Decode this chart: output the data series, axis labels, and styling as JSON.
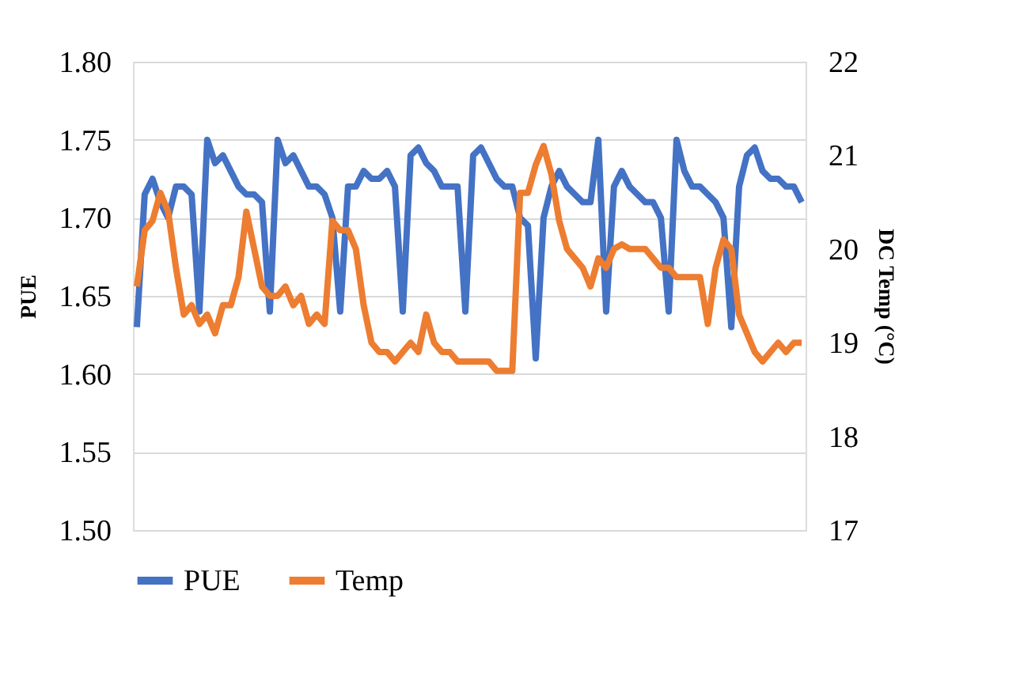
{
  "chart_data": {
    "type": "line",
    "ylabel": "PUE",
    "y2label": "DC Temp (°C)",
    "categories": [
      null,
      null,
      null,
      null,
      null,
      null,
      null,
      null,
      null,
      null,
      null,
      null,
      null,
      null,
      null,
      null,
      null,
      null,
      null,
      null,
      null,
      null,
      null,
      null,
      null,
      null,
      null,
      null,
      null,
      null,
      null,
      null,
      null,
      null,
      null,
      null,
      null,
      null,
      null,
      null,
      null,
      null,
      null,
      null,
      null,
      null,
      null,
      null,
      null,
      null,
      null,
      null,
      null,
      null,
      null,
      null,
      null,
      null,
      null,
      null,
      null,
      null,
      null,
      null,
      null,
      null,
      null,
      null,
      null,
      null,
      null,
      null,
      null,
      null,
      null,
      null,
      null,
      null,
      null,
      null,
      null,
      null,
      null,
      null,
      null,
      null
    ],
    "ylim": [
      1.5,
      1.8
    ],
    "y2lim": [
      17,
      22
    ],
    "yticks": [
      {
        "value": 1.5,
        "label": "1.50"
      },
      {
        "value": 1.55,
        "label": "1.55"
      },
      {
        "value": 1.6,
        "label": "1.60"
      },
      {
        "value": 1.65,
        "label": "1.65"
      },
      {
        "value": 1.7,
        "label": "1.70"
      },
      {
        "value": 1.75,
        "label": "1.75"
      },
      {
        "value": 1.8,
        "label": "1.80"
      }
    ],
    "y2ticks": [
      17,
      18,
      19,
      20,
      21,
      22
    ],
    "grid": "y",
    "legend": "bottom",
    "line_style": "solid",
    "marker": "none",
    "series": [
      {
        "name": "PUE",
        "color": "#4472c4",
        "values": [
          1.63,
          1.715,
          1.725,
          1.71,
          1.7,
          1.72,
          1.72,
          1.715,
          1.64,
          1.75,
          1.735,
          1.74,
          1.73,
          1.72,
          1.715,
          1.715,
          1.71,
          1.64,
          1.75,
          1.735,
          1.74,
          1.73,
          1.72,
          1.72,
          1.715,
          1.7,
          1.64,
          1.72,
          1.72,
          1.73,
          1.725,
          1.725,
          1.73,
          1.72,
          1.64,
          1.74,
          1.745,
          1.735,
          1.73,
          1.72,
          1.72,
          1.72,
          1.64,
          1.74,
          1.745,
          1.735,
          1.725,
          1.72,
          1.72,
          1.7,
          1.695,
          1.61,
          1.7,
          1.72,
          1.73,
          1.72,
          1.715,
          1.71,
          1.71,
          1.75,
          1.64,
          1.72,
          1.73,
          1.72,
          1.715,
          1.71,
          1.71,
          1.7,
          1.64,
          1.75,
          1.73,
          1.72,
          1.72,
          1.715,
          1.71,
          1.7,
          1.63,
          1.72,
          1.74,
          1.745,
          1.73,
          1.725,
          1.725,
          1.72,
          1.72,
          1.71
        ]
      },
      {
        "name": "Temp",
        "color": "#ed7d31",
        "axis": "y2",
        "values": [
          19.6,
          20.2,
          20.3,
          20.6,
          20.4,
          19.8,
          19.3,
          19.4,
          19.2,
          19.3,
          19.1,
          19.4,
          19.4,
          19.7,
          20.4,
          20.0,
          19.6,
          19.5,
          19.5,
          19.6,
          19.4,
          19.5,
          19.2,
          19.3,
          19.2,
          20.3,
          20.2,
          20.2,
          20.0,
          19.4,
          19.0,
          18.9,
          18.9,
          18.8,
          18.9,
          19.0,
          18.9,
          19.3,
          19.0,
          18.9,
          18.9,
          18.8,
          18.8,
          18.8,
          18.8,
          18.8,
          18.7,
          18.7,
          18.7,
          20.6,
          20.6,
          20.9,
          21.1,
          20.8,
          20.3,
          20.0,
          19.9,
          19.8,
          19.6,
          19.9,
          19.8,
          20.0,
          20.05,
          20.0,
          20.0,
          20.0,
          19.9,
          19.8,
          19.8,
          19.7,
          19.7,
          19.7,
          19.7,
          19.2,
          19.8,
          20.1,
          20.0,
          19.3,
          19.1,
          18.9,
          18.8,
          18.9,
          19.0,
          18.9,
          19.0,
          19.0
        ]
      }
    ]
  }
}
